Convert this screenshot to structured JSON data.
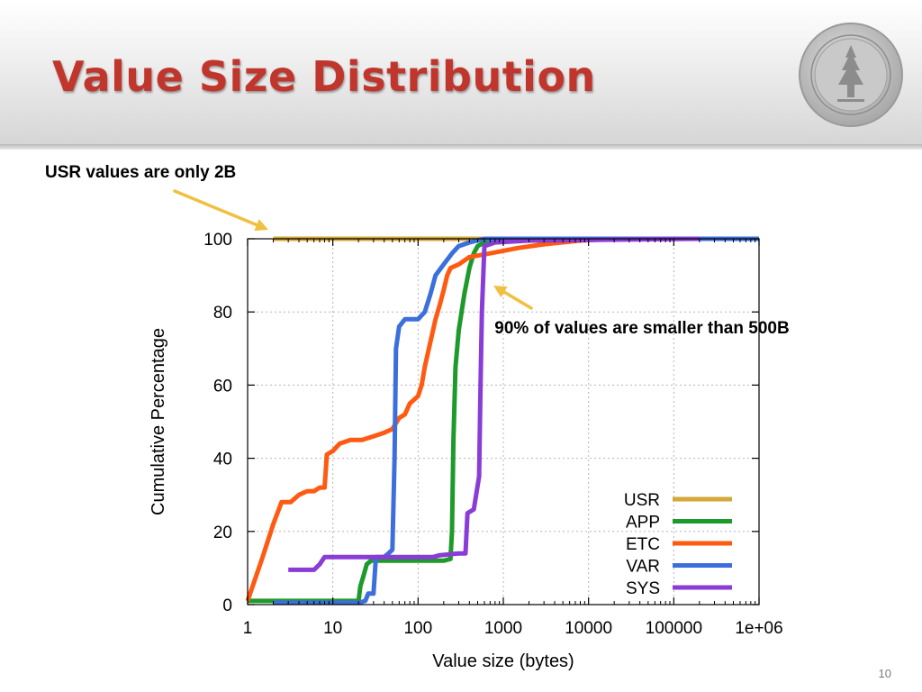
{
  "slide": {
    "title": "Value Size Distribution",
    "annotation_usr": "USR values are only 2B",
    "annotation_percent": "90% of values are smaller than 500B",
    "slide_number": "10",
    "arrow_color": "#f0c040",
    "title_color": "#c0362c"
  },
  "chart_data": {
    "type": "line",
    "xlabel": "Value size (bytes)",
    "ylabel": "Cumulative Percentage",
    "x_scale": "log",
    "xlim": [
      1,
      1000000
    ],
    "ylim": [
      0,
      100
    ],
    "x_ticks": [
      "1",
      "10",
      "100",
      "1000",
      "10000",
      "100000",
      "1e+06"
    ],
    "x_tick_values": [
      1,
      10,
      100,
      1000,
      10000,
      100000,
      1000000
    ],
    "y_ticks": [
      0,
      20,
      40,
      60,
      80,
      100
    ],
    "grid": true,
    "legend_position": "bottom-right",
    "series": [
      {
        "name": "USR",
        "color": "#d4a83a",
        "points": [
          [
            2,
            100
          ],
          [
            200000,
            100
          ]
        ]
      },
      {
        "name": "APP",
        "color": "#1e9a2c",
        "points": [
          [
            1,
            1
          ],
          [
            20,
            1
          ],
          [
            21,
            5
          ],
          [
            23,
            8
          ],
          [
            25,
            11
          ],
          [
            28,
            12
          ],
          [
            200,
            12
          ],
          [
            240,
            12.5
          ],
          [
            250,
            20
          ],
          [
            260,
            45
          ],
          [
            275,
            65
          ],
          [
            300,
            75
          ],
          [
            350,
            85
          ],
          [
            400,
            92
          ],
          [
            450,
            96
          ],
          [
            500,
            98
          ],
          [
            600,
            99
          ],
          [
            1000,
            100
          ],
          [
            1000000,
            100
          ]
        ]
      },
      {
        "name": "ETC",
        "color": "#ff5a12",
        "points": [
          [
            1,
            1
          ],
          [
            1.5,
            13
          ],
          [
            2.0,
            22
          ],
          [
            2.5,
            28
          ],
          [
            3.2,
            28
          ],
          [
            4,
            30
          ],
          [
            5,
            31
          ],
          [
            6,
            31
          ],
          [
            7,
            32
          ],
          [
            8,
            32
          ],
          [
            8.5,
            41
          ],
          [
            10,
            42
          ],
          [
            12,
            44
          ],
          [
            16,
            45
          ],
          [
            22,
            45
          ],
          [
            30,
            46
          ],
          [
            40,
            47
          ],
          [
            50,
            48
          ],
          [
            60,
            51
          ],
          [
            70,
            52
          ],
          [
            80,
            55
          ],
          [
            100,
            57
          ],
          [
            110,
            60
          ],
          [
            120,
            65
          ],
          [
            140,
            72
          ],
          [
            160,
            78
          ],
          [
            180,
            82
          ],
          [
            200,
            86
          ],
          [
            220,
            90
          ],
          [
            240,
            92
          ],
          [
            300,
            93
          ],
          [
            400,
            95
          ],
          [
            700,
            96
          ],
          [
            1500,
            97.5
          ],
          [
            3000,
            98.5
          ],
          [
            8000,
            99.5
          ],
          [
            20000,
            100
          ],
          [
            1000000,
            100
          ]
        ]
      },
      {
        "name": "VAR",
        "color": "#3c6fdc",
        "points": [
          [
            2,
            0.5
          ],
          [
            20,
            0.5
          ],
          [
            24,
            1
          ],
          [
            26,
            3
          ],
          [
            30,
            3
          ],
          [
            32,
            13
          ],
          [
            40,
            13
          ],
          [
            45,
            14
          ],
          [
            50,
            15
          ],
          [
            53,
            40
          ],
          [
            55,
            70
          ],
          [
            60,
            76
          ],
          [
            70,
            78
          ],
          [
            100,
            78
          ],
          [
            120,
            80
          ],
          [
            140,
            85
          ],
          [
            160,
            90
          ],
          [
            200,
            93
          ],
          [
            250,
            96
          ],
          [
            300,
            98
          ],
          [
            400,
            99
          ],
          [
            600,
            100
          ],
          [
            1000000,
            100
          ]
        ]
      },
      {
        "name": "SYS",
        "color": "#8a3cd6",
        "points": [
          [
            3,
            9.5
          ],
          [
            6,
            9.5
          ],
          [
            7,
            11
          ],
          [
            8,
            13
          ],
          [
            150,
            13
          ],
          [
            180,
            13.5
          ],
          [
            300,
            14
          ],
          [
            360,
            14
          ],
          [
            380,
            25
          ],
          [
            450,
            26
          ],
          [
            520,
            35
          ],
          [
            540,
            60
          ],
          [
            560,
            80
          ],
          [
            600,
            98
          ],
          [
            800,
            99
          ],
          [
            2000,
            99.5
          ],
          [
            200000,
            100
          ]
        ]
      }
    ]
  }
}
